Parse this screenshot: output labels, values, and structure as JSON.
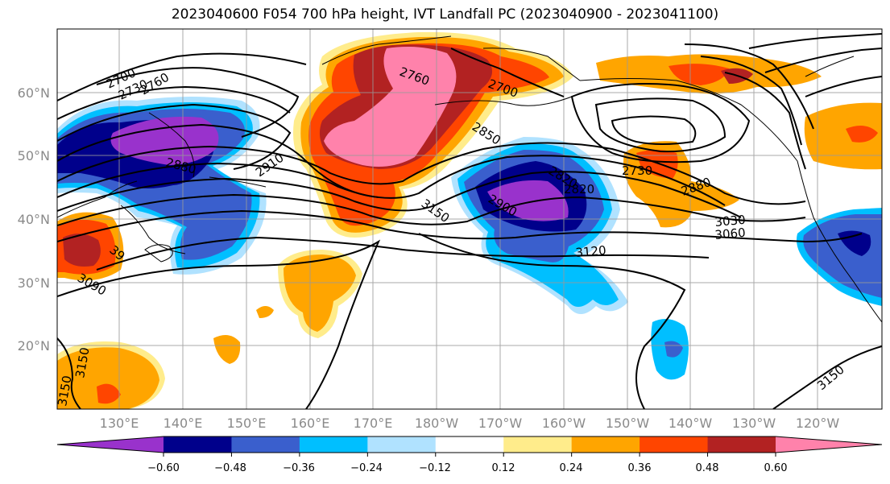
{
  "title": "2023040600 F054 700 hPa height, IVT Landfall PC (2023040900 - 2023041100)",
  "map": {
    "lon_labels": [
      "130°E",
      "140°E",
      "150°E",
      "160°E",
      "170°E",
      "180°W",
      "170°W",
      "160°W",
      "150°W",
      "140°W",
      "130°W",
      "120°W"
    ],
    "lat_labels": [
      "60°N",
      "50°N",
      "40°N",
      "30°N",
      "20°N"
    ],
    "contour_labels": [
      "2700",
      "2730",
      "2760",
      "2760",
      "2700",
      "2850",
      "2880",
      "2910",
      "2820",
      "2820",
      "2730",
      "2880",
      "3030",
      "3060",
      "3120",
      "3150",
      "2900",
      "39",
      "3090",
      "3150",
      "3150",
      "3150"
    ]
  },
  "colorbar": {
    "tick_labels": [
      "−0.60",
      "−0.48",
      "−0.36",
      "−0.24",
      "−0.12",
      "0.12",
      "0.24",
      "0.36",
      "0.48",
      "0.60"
    ],
    "colors": [
      "#9932cc",
      "#00008b",
      "#3a5fcd",
      "#00bfff",
      "#b0e2ff",
      "#ffffff",
      "#ffec8b",
      "#ffa500",
      "#ff4500",
      "#b22222",
      "#ff82ab"
    ]
  }
}
